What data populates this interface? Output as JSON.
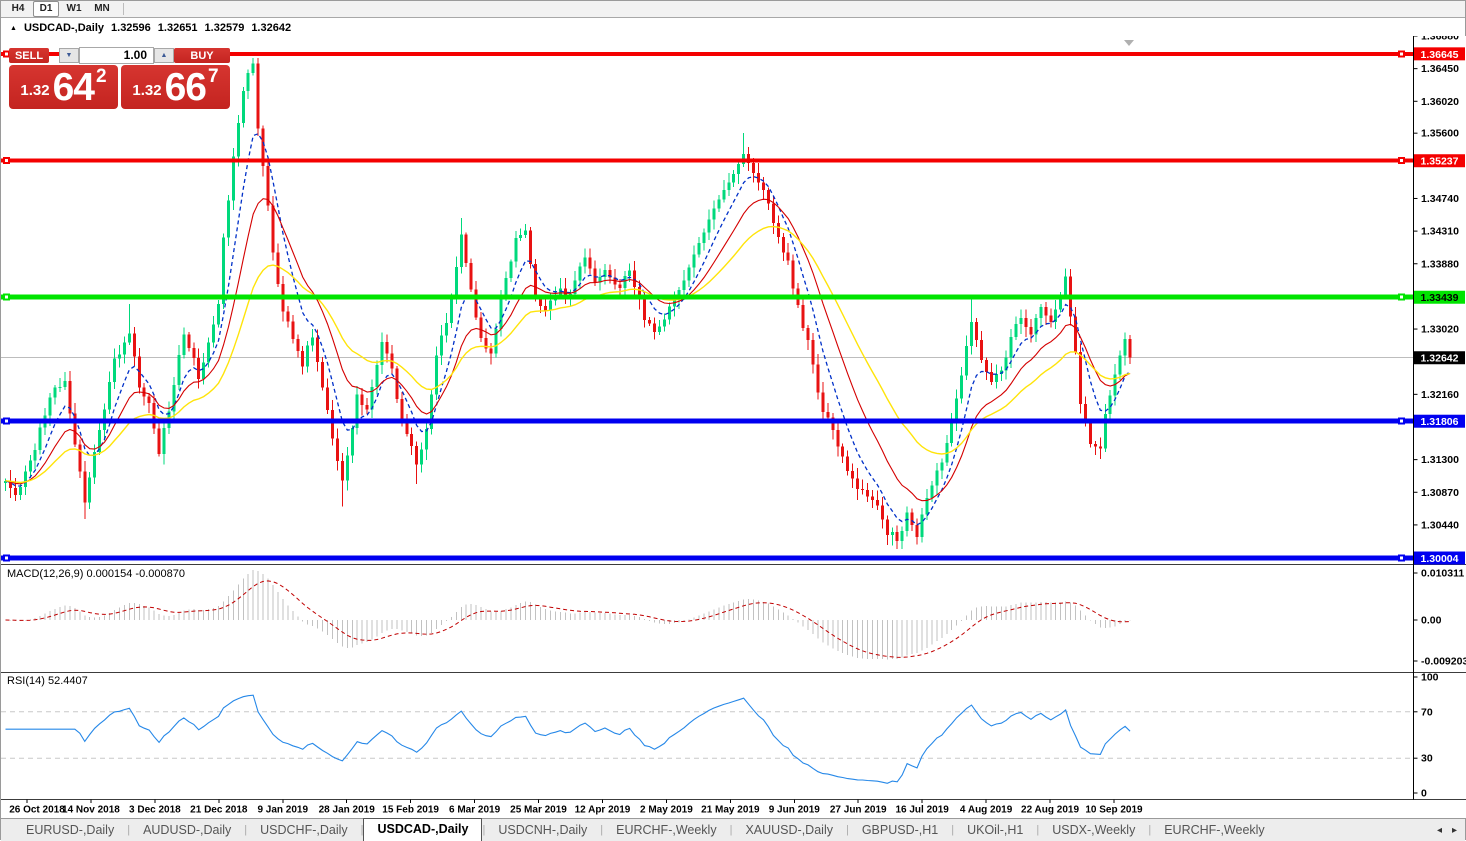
{
  "toolbar": {
    "timeframes": [
      {
        "label": "H4",
        "active": false
      },
      {
        "label": "D1",
        "active": true
      },
      {
        "label": "W1",
        "active": false
      },
      {
        "label": "MN",
        "active": false
      }
    ]
  },
  "title": {
    "collapse_icon": "▲",
    "symbol": "USDCAD-,Daily",
    "open": "1.32596",
    "high": "1.32651",
    "low": "1.32579",
    "close": "1.32642"
  },
  "trade_panel": {
    "sell_label": "SELL",
    "buy_label": "BUY",
    "volume": "1.00",
    "volume_down_icon": "▼",
    "volume_up_icon": "▲",
    "sell_price_small": "1.32",
    "sell_price_big": "64",
    "sell_price_sup": "2",
    "buy_price_small": "1.32",
    "buy_price_big": "66",
    "buy_price_sup": "7"
  },
  "price_axis_ticks": [
    "1.36880",
    "1.36450",
    "1.36020",
    "1.35600",
    "1.34740",
    "1.34310",
    "1.33880",
    "1.33020",
    "1.32160",
    "1.31300",
    "1.30870",
    "1.30440"
  ],
  "hlines": [
    {
      "name": "resistance-line-1",
      "price": 1.36645,
      "label": "1.36645",
      "color": "#f40000",
      "text": "#ffffff",
      "thick": 4
    },
    {
      "name": "resistance-line-2",
      "price": 1.35237,
      "label": "1.35237",
      "color": "#f40000",
      "text": "#ffffff",
      "thick": 4
    },
    {
      "name": "pivot-line",
      "price": 1.33439,
      "label": "1.33439",
      "color": "#00e400",
      "text": "#000000",
      "thick": 5
    },
    {
      "name": "support-line-1",
      "price": 1.31806,
      "label": "1.31806",
      "color": "#0000f0",
      "text": "#ffffff",
      "thick": 5
    },
    {
      "name": "support-line-2",
      "price": 1.30004,
      "label": "1.30004",
      "color": "#0000f0",
      "text": "#ffffff",
      "thick": 5
    }
  ],
  "current_price": {
    "value": 1.32642,
    "label": "1.32642",
    "bg": "#000000",
    "text": "#ffffff"
  },
  "indicator_macd": {
    "label": "MACD(12,26,9) 0.000154 -0.000870",
    "axis_top": "0.010311",
    "axis_mid": "0.00",
    "axis_bottom": "-0.009203"
  },
  "indicator_rsi": {
    "label": "RSI(14) 52.4407",
    "axis": [
      "100",
      "70",
      "30",
      "0"
    ],
    "levels": [
      70,
      30
    ]
  },
  "date_axis": [
    "26 Oct 2018",
    "14 Nov 2018",
    "3 Dec 2018",
    "21 Dec 2018",
    "9 Jan 2019",
    "28 Jan 2019",
    "15 Feb 2019",
    "6 Mar 2019",
    "25 Mar 2019",
    "12 Apr 2019",
    "2 May 2019",
    "21 May 2019",
    "9 Jun 2019",
    "27 Jun 2019",
    "16 Jul 2019",
    "4 Aug 2019",
    "22 Aug 2019",
    "10 Sep 2019"
  ],
  "tabs": {
    "items": [
      "EURUSD-,Daily",
      "AUDUSD-,Daily",
      "USDCHF-,Daily",
      "USDCAD-,Daily",
      "USDCNH-,Daily",
      "EURCHF-,Weekly",
      "XAUUSD-,Daily",
      "GBPUSD-,H1",
      "UKOil-,H1",
      "USDX-,Weekly",
      "EURCHF-,Weekly"
    ],
    "active_index": 3,
    "scroll_left_icon": "◂",
    "scroll_right_icon": "▸"
  },
  "chart_data": {
    "type": "candlestick",
    "symbol": "USDCAD",
    "timeframe": "Daily",
    "num_candles": 228,
    "last_close": 1.32642,
    "y_axis": {
      "top": 1.3688,
      "bottom": 1.2993
    },
    "colors": {
      "up": "#00d97c",
      "down": "#e81212",
      "macd_histogram": "#c2c2c2",
      "macd_signal": "#c00000",
      "rsi_line": "#2688e8"
    },
    "close_keypoints": [
      [
        0,
        1.3105
      ],
      [
        2,
        1.3085
      ],
      [
        5,
        1.3125
      ],
      [
        9,
        1.3215
      ],
      [
        12,
        1.3235
      ],
      [
        14,
        1.315
      ],
      [
        16,
        1.3075
      ],
      [
        19,
        1.317
      ],
      [
        22,
        1.326
      ],
      [
        25,
        1.33
      ],
      [
        27,
        1.323
      ],
      [
        29,
        1.32
      ],
      [
        31,
        1.3135
      ],
      [
        34,
        1.323
      ],
      [
        36,
        1.33
      ],
      [
        39,
        1.324
      ],
      [
        41,
        1.328
      ],
      [
        43,
        1.333
      ],
      [
        44,
        1.342
      ],
      [
        46,
        1.353
      ],
      [
        48,
        1.3615
      ],
      [
        49,
        1.364
      ],
      [
        50,
        1.3655
      ],
      [
        51,
        1.3565
      ],
      [
        53,
        1.347
      ],
      [
        54,
        1.34
      ],
      [
        56,
        1.333
      ],
      [
        58,
        1.329
      ],
      [
        60,
        1.3255
      ],
      [
        62,
        1.3295
      ],
      [
        64,
        1.323
      ],
      [
        66,
        1.316
      ],
      [
        68,
        1.31
      ],
      [
        69,
        1.3135
      ],
      [
        71,
        1.3215
      ],
      [
        73,
        1.3195
      ],
      [
        76,
        1.329
      ],
      [
        78,
        1.3245
      ],
      [
        80,
        1.3185
      ],
      [
        83,
        1.3125
      ],
      [
        85,
        1.3165
      ],
      [
        87,
        1.3265
      ],
      [
        90,
        1.334
      ],
      [
        92,
        1.343
      ],
      [
        94,
        1.335
      ],
      [
        96,
        1.3285
      ],
      [
        98,
        1.3265
      ],
      [
        100,
        1.3345
      ],
      [
        103,
        1.342
      ],
      [
        105,
        1.3435
      ],
      [
        107,
        1.334
      ],
      [
        109,
        1.3325
      ],
      [
        112,
        1.3355
      ],
      [
        114,
        1.3345
      ],
      [
        117,
        1.34
      ],
      [
        119,
        1.3365
      ],
      [
        121,
        1.3385
      ],
      [
        124,
        1.3355
      ],
      [
        126,
        1.338
      ],
      [
        129,
        1.3315
      ],
      [
        131,
        1.3295
      ],
      [
        134,
        1.333
      ],
      [
        136,
        1.3355
      ],
      [
        139,
        1.34
      ],
      [
        142,
        1.3445
      ],
      [
        144,
        1.3475
      ],
      [
        147,
        1.3505
      ],
      [
        149,
        1.353
      ],
      [
        151,
        1.3505
      ],
      [
        153,
        1.349
      ],
      [
        155,
        1.344
      ],
      [
        157,
        1.3405
      ],
      [
        158,
        1.339
      ],
      [
        160,
        1.333
      ],
      [
        162,
        1.3285
      ],
      [
        164,
        1.3215
      ],
      [
        166,
        1.318
      ],
      [
        169,
        1.3135
      ],
      [
        171,
        1.31
      ],
      [
        174,
        1.3085
      ],
      [
        176,
        1.3065
      ],
      [
        178,
        1.3035
      ],
      [
        180,
        1.3028
      ],
      [
        182,
        1.3055
      ],
      [
        184,
        1.3032
      ],
      [
        186,
        1.3085
      ],
      [
        189,
        1.313
      ],
      [
        191,
        1.318
      ],
      [
        193,
        1.3245
      ],
      [
        195,
        1.331
      ],
      [
        197,
        1.3265
      ],
      [
        199,
        1.323
      ],
      [
        201,
        1.3245
      ],
      [
        203,
        1.329
      ],
      [
        205,
        1.332
      ],
      [
        207,
        1.33
      ],
      [
        209,
        1.333
      ],
      [
        211,
        1.331
      ],
      [
        213,
        1.334
      ],
      [
        214,
        1.337
      ],
      [
        216,
        1.327
      ],
      [
        217,
        1.32
      ],
      [
        219,
        1.3155
      ],
      [
        221,
        1.314
      ],
      [
        222,
        1.3195
      ],
      [
        224,
        1.324
      ],
      [
        226,
        1.3285
      ],
      [
        227,
        1.32642
      ]
    ],
    "high_overrides": [
      [
        25,
        1.3335
      ],
      [
        50,
        1.3659
      ],
      [
        92,
        1.3448
      ],
      [
        149,
        1.356
      ],
      [
        195,
        1.3345
      ],
      [
        214,
        1.3382
      ]
    ],
    "low_overrides": [
      [
        16,
        1.3052
      ],
      [
        68,
        1.3068
      ],
      [
        83,
        1.3098
      ],
      [
        180,
        1.3015
      ],
      [
        184,
        1.3018
      ],
      [
        221,
        1.3131
      ]
    ],
    "moving_averages": [
      {
        "name": "fast",
        "period": 7,
        "color": "#0030c8",
        "dash": true,
        "width": 1.3
      },
      {
        "name": "medium",
        "period": 15,
        "color": "#d40000",
        "dash": false,
        "width": 1.1
      },
      {
        "name": "slow",
        "period": 30,
        "color": "#ffe40a",
        "dash": false,
        "width": 1.4
      }
    ],
    "macd_params": {
      "fast": 12,
      "slow": 26,
      "signal": 9,
      "current_main": 0.000154,
      "current_signal": -0.00087
    },
    "rsi_params": {
      "period": 14,
      "current": 52.4407
    }
  }
}
